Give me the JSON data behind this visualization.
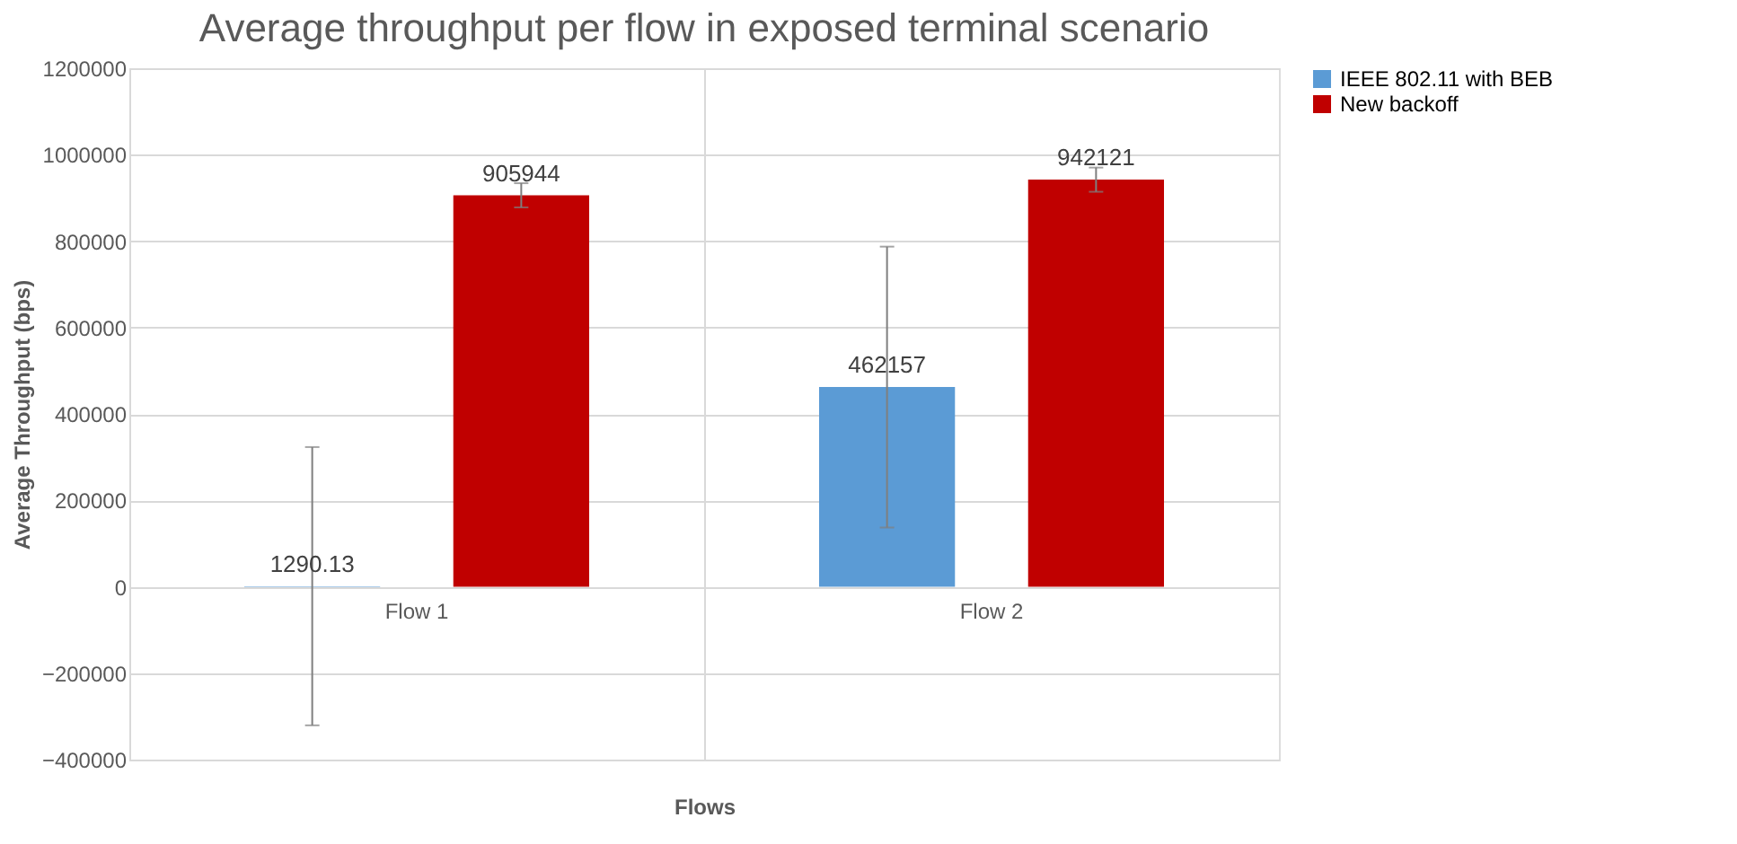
{
  "chart_data": {
    "type": "bar",
    "title": "Average throughput per flow in exposed terminal scenario",
    "xlabel": "Flows",
    "ylabel": "Average Throughput (bps)",
    "categories": [
      "Flow 1",
      "Flow 2"
    ],
    "series": [
      {
        "name": "IEEE 802.11 with BEB",
        "color": "#5b9bd5",
        "values": [
          1290.13,
          462157
        ],
        "errors": [
          322000,
          325000
        ]
      },
      {
        "name": "New backoff",
        "color": "#c00000",
        "values": [
          905944,
          942121
        ],
        "errors": [
          28000,
          28000
        ]
      }
    ],
    "ylim": [
      -400000,
      1200000
    ],
    "yticks": [
      -400000,
      -200000,
      0,
      200000,
      400000,
      600000,
      800000,
      1000000,
      1200000
    ],
    "grid": true,
    "legend": "right",
    "data_labels": true
  }
}
